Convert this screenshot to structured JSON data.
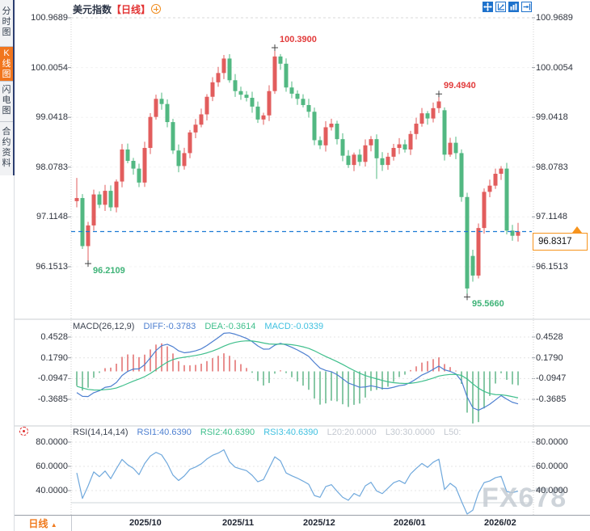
{
  "header": {
    "title": "美元指数",
    "period_tag": "【日线】"
  },
  "toolbar": {
    "icons": [
      "pan-tool",
      "zoom-scale-tool",
      "bar-zoom-tool",
      "go-latest-tool"
    ]
  },
  "sidebar": {
    "tabs": [
      {
        "label": "分时图",
        "active": false
      },
      {
        "label": "K线图",
        "active": true
      },
      {
        "label": "闪电图",
        "active": false
      },
      {
        "label": "合约资料",
        "active": false
      }
    ]
  },
  "axis": {
    "period_label": "日线",
    "dates": [
      "2025/10",
      "2025/11",
      "2025/12",
      "2026/01",
      "2026/02"
    ],
    "date_x": [
      184,
      299,
      399,
      511,
      623
    ]
  },
  "watermark": "FX678",
  "macd_pane": {
    "header": "MACD(26,12,9)",
    "diff_label": "DIFF:-0.3783",
    "dea_label": "DEA:-0.3614",
    "macd_label": "MACD:-0.0339"
  },
  "rsi_pane": {
    "header": "RSI(14,14,14)",
    "rsi1_label": "RSI1:40.6390",
    "rsi2_label": "RSI2:40.6390",
    "rsi3_label": "RSI3:40.6390",
    "l20_label": "L20:20.0000",
    "l30_label": "L30:30.0000",
    "l50_label": "L50:"
  },
  "price_tag": {
    "value": "96.8317"
  },
  "chart_data": {
    "type": "candlestick+indicators",
    "title": "美元指数",
    "interval": "日线",
    "price_axis": [
      100.9689,
      100.0054,
      99.0418,
      98.0783,
      97.1148,
      96.1513
    ],
    "macd_axis": [
      0.4528,
      0.179,
      -0.0947,
      -0.3685
    ],
    "rsi_axis": [
      80.0,
      60.0,
      40.0
    ],
    "current_price": 96.8317,
    "annotations": [
      {
        "label": "100.3900",
        "candle": 35,
        "type": "high"
      },
      {
        "label": "99.4940",
        "candle": 64,
        "type": "high"
      },
      {
        "label": "96.2109",
        "candle": 2,
        "type": "low"
      },
      {
        "label": "95.5660",
        "candle": 69,
        "type": "low"
      }
    ],
    "candles": {
      "closes": [
        97.48,
        96.55,
        96.95,
        97.55,
        97.35,
        97.62,
        97.3,
        97.8,
        98.42,
        98.2,
        98.05,
        97.78,
        98.45,
        99.05,
        99.4,
        99.3,
        98.95,
        98.4,
        98.1,
        98.35,
        98.75,
        98.9,
        99.1,
        99.44,
        99.72,
        99.9,
        100.18,
        99.76,
        99.55,
        99.48,
        99.42,
        99.25,
        99.0,
        99.08,
        99.55,
        100.22,
        100.08,
        99.62,
        99.5,
        99.4,
        99.28,
        99.15,
        98.6,
        98.5,
        98.85,
        98.92,
        98.62,
        98.3,
        98.12,
        98.32,
        98.18,
        98.5,
        98.62,
        98.25,
        98.12,
        98.28,
        98.45,
        98.52,
        98.42,
        98.72,
        98.92,
        99.12,
        99.02,
        99.22,
        99.35,
        98.32,
        98.55,
        98.35,
        97.5,
        95.73,
        95.98,
        96.9,
        97.6,
        97.72,
        97.95,
        98.05,
        96.85,
        96.75,
        96.8317
      ],
      "open_overrides": {
        "0": 97.42,
        "65": 99.18,
        "70": 96.36
      },
      "high_overrides": {
        "0": 97.87,
        "2": 97.02,
        "35": 100.39,
        "64": 99.494,
        "78": 97.0
      },
      "low_overrides": {
        "0": 97.3,
        "2": 96.2109,
        "53": 97.85,
        "69": 95.566
      }
    },
    "indicators": {
      "macd": {
        "params": [
          26,
          12,
          9
        ],
        "diff": -0.3783,
        "dea": -0.3614,
        "macd": -0.0339
      },
      "rsi": {
        "params": [
          14,
          14,
          14
        ],
        "rsi1": 40.639,
        "rsi2": 40.639,
        "rsi3": 40.639,
        "levels": {
          "L20": 20.0,
          "L30": 30.0
        }
      }
    },
    "colors": {
      "up": "#e25d5d",
      "down": "#52b882",
      "hist_up": "#dd5454",
      "hist_down": "#48ab77",
      "diff_line": "#4d7fd0",
      "dea_line": "#3fbf8c",
      "rsi_line": "#6fa8dc",
      "price_line": "#1d7ad4",
      "annotation_high": "#e23b3b",
      "annotation_low": "#3eb377",
      "tag_border": "#f7941d",
      "active_tab": "#f1751d"
    }
  }
}
